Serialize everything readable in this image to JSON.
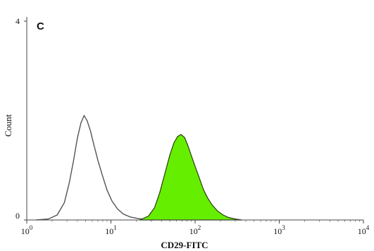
{
  "chart_data": {
    "type": "area",
    "panel_label": "C",
    "xlabel": "CD29-FITC",
    "ylabel": "Count",
    "x_scale": "log",
    "xlim": [
      1,
      10000
    ],
    "ylim": [
      0,
      4
    ],
    "x_ticks": [
      {
        "value": 1,
        "base": "10",
        "exp": "0"
      },
      {
        "value": 10,
        "base": "10",
        "exp": "1"
      },
      {
        "value": 100,
        "base": "10",
        "exp": "2"
      },
      {
        "value": 1000,
        "base": "10",
        "exp": "3"
      },
      {
        "value": 10000,
        "base": "10",
        "exp": "4"
      }
    ],
    "y_ticks": [
      {
        "value": 0,
        "label": "0"
      },
      {
        "value": 4,
        "label": "4"
      }
    ],
    "grid": false,
    "series": [
      {
        "style": "outline",
        "color": "#555555",
        "x": [
          1.3,
          1.8,
          2.3,
          2.8,
          3.2,
          3.6,
          4.0,
          4.4,
          4.8,
          5.2,
          5.7,
          6.3,
          7.0,
          7.9,
          9.0,
          10.3,
          12,
          14,
          17,
          21,
          26,
          32
        ],
        "y": [
          0.0,
          0.02,
          0.1,
          0.35,
          0.75,
          1.2,
          1.65,
          1.95,
          2.1,
          2.0,
          1.8,
          1.5,
          1.2,
          0.9,
          0.6,
          0.38,
          0.22,
          0.12,
          0.06,
          0.03,
          0.01,
          0.0
        ]
      },
      {
        "style": "filled",
        "color": "#66ee00",
        "x": [
          22,
          28,
          33,
          38,
          44,
          50,
          56,
          62,
          68,
          75,
          82,
          90,
          100,
          112,
          125,
          140,
          160,
          185,
          215,
          250,
          300,
          360
        ],
        "y": [
          0.0,
          0.08,
          0.25,
          0.55,
          0.95,
          1.3,
          1.55,
          1.68,
          1.72,
          1.66,
          1.5,
          1.3,
          1.08,
          0.85,
          0.62,
          0.45,
          0.3,
          0.18,
          0.1,
          0.05,
          0.02,
          0.0
        ]
      }
    ]
  }
}
